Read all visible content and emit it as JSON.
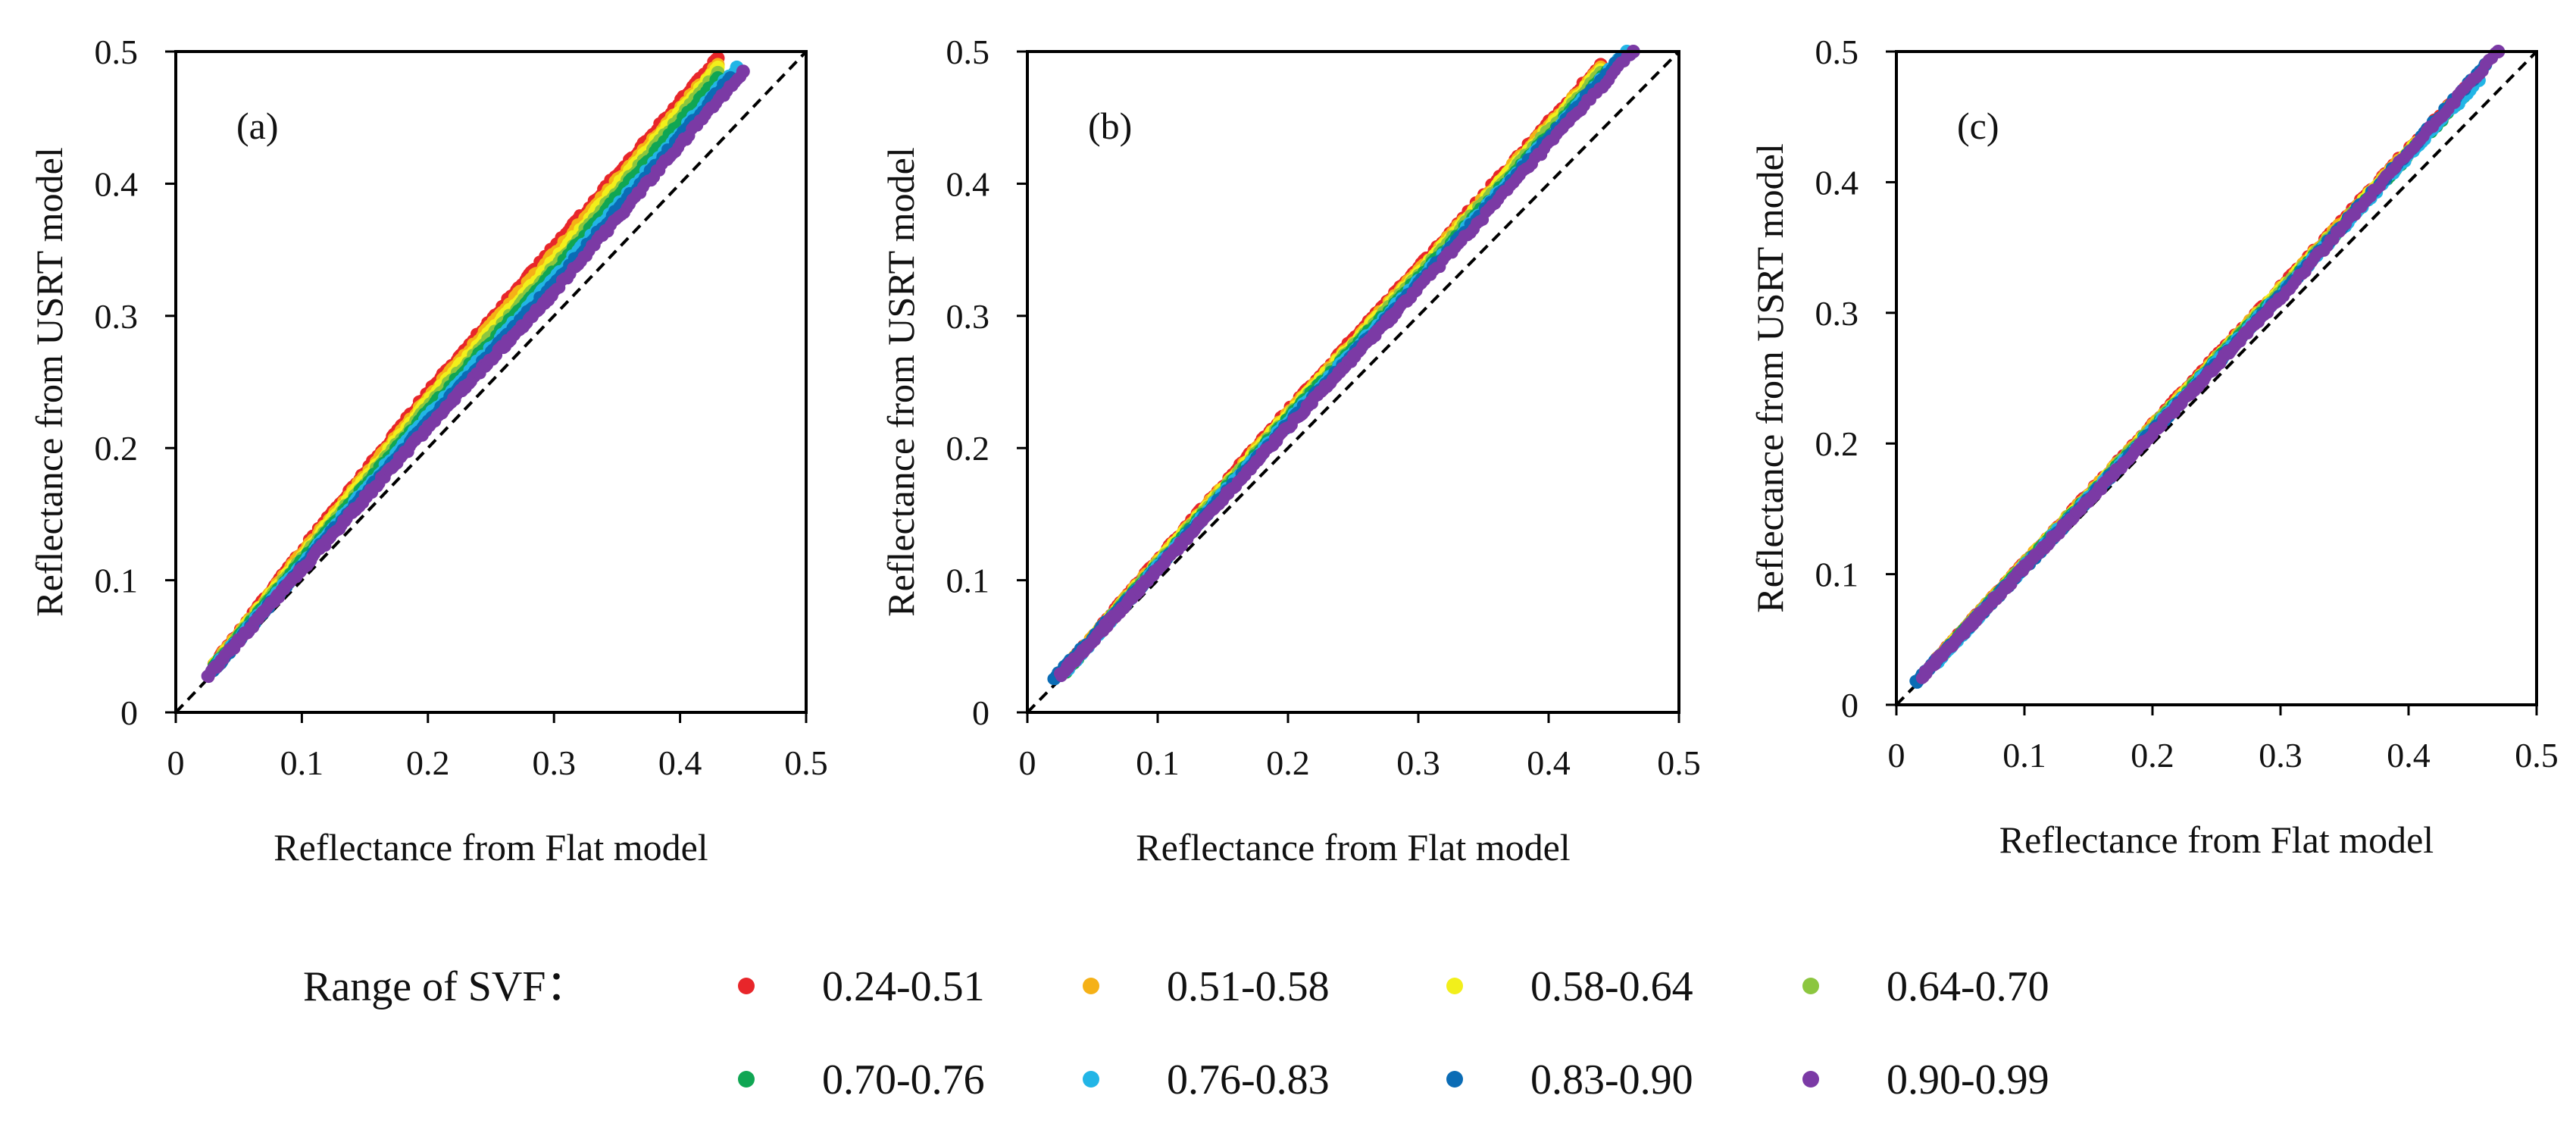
{
  "chart_data": [
    {
      "type": "scatter",
      "panel_label": "(a)",
      "xlabel": "Reflectance from Flat model",
      "ylabel": "Reflectance from USRT model",
      "xlim": [
        0,
        0.5
      ],
      "ylim": [
        0,
        0.5
      ],
      "xticks": [
        "0",
        "0.1",
        "0.2",
        "0.3",
        "0.4",
        "0.5"
      ],
      "yticks": [
        "0",
        "0.1",
        "0.2",
        "0.3",
        "0.4",
        "0.5"
      ],
      "reference_line": "1:1 dashed",
      "series": [
        {
          "name": "0.24-0.51",
          "x": [
            0.03,
            0.1,
            0.2,
            0.3,
            0.43
          ],
          "y": [
            0.036,
            0.122,
            0.242,
            0.352,
            0.495
          ]
        },
        {
          "name": "0.51-0.58",
          "x": [
            0.03,
            0.1,
            0.2,
            0.3,
            0.43
          ],
          "y": [
            0.035,
            0.12,
            0.238,
            0.347,
            0.49
          ]
        },
        {
          "name": "0.58-0.64",
          "x": [
            0.03,
            0.1,
            0.2,
            0.3,
            0.43
          ],
          "y": [
            0.035,
            0.118,
            0.235,
            0.342,
            0.488
          ]
        },
        {
          "name": "0.64-0.70",
          "x": [
            0.03,
            0.1,
            0.2,
            0.3,
            0.43
          ],
          "y": [
            0.034,
            0.116,
            0.231,
            0.337,
            0.484
          ]
        },
        {
          "name": "0.70-0.76",
          "x": [
            0.03,
            0.1,
            0.2,
            0.3,
            0.43
          ],
          "y": [
            0.034,
            0.114,
            0.228,
            0.333,
            0.48
          ]
        },
        {
          "name": "0.76-0.83",
          "x": [
            0.03,
            0.1,
            0.2,
            0.3,
            0.445
          ],
          "y": [
            0.033,
            0.112,
            0.224,
            0.328,
            0.488
          ]
        },
        {
          "name": "0.83-0.90",
          "x": [
            0.03,
            0.1,
            0.2,
            0.3,
            0.44
          ],
          "y": [
            0.032,
            0.11,
            0.22,
            0.324,
            0.48
          ]
        },
        {
          "name": "0.90-0.99",
          "x": [
            0.025,
            0.1,
            0.2,
            0.3,
            0.45
          ],
          "y": [
            0.027,
            0.108,
            0.216,
            0.318,
            0.485
          ]
        }
      ]
    },
    {
      "type": "scatter",
      "panel_label": "(b)",
      "xlabel": "Reflectance from Flat model",
      "ylabel": "Reflectance from USRT model",
      "xlim": [
        0,
        0.5
      ],
      "ylim": [
        0,
        0.5
      ],
      "xticks": [
        "0",
        "0.1",
        "0.2",
        "0.3",
        "0.4",
        "0.5"
      ],
      "yticks": [
        "0",
        "0.1",
        "0.2",
        "0.3",
        "0.4",
        "0.5"
      ],
      "reference_line": "1:1 dashed",
      "series": [
        {
          "name": "0.24-0.51",
          "x": [
            0.03,
            0.1,
            0.2,
            0.3,
            0.44
          ],
          "y": [
            0.034,
            0.115,
            0.228,
            0.336,
            0.49
          ]
        },
        {
          "name": "0.51-0.58",
          "x": [
            0.03,
            0.1,
            0.2,
            0.3,
            0.44
          ],
          "y": [
            0.034,
            0.114,
            0.226,
            0.334,
            0.488
          ]
        },
        {
          "name": "0.58-0.64",
          "x": [
            0.03,
            0.1,
            0.2,
            0.3,
            0.44
          ],
          "y": [
            0.033,
            0.113,
            0.225,
            0.332,
            0.486
          ]
        },
        {
          "name": "0.64-0.70",
          "x": [
            0.03,
            0.1,
            0.2,
            0.3,
            0.44
          ],
          "y": [
            0.033,
            0.112,
            0.223,
            0.33,
            0.484
          ]
        },
        {
          "name": "0.70-0.76",
          "x": [
            0.03,
            0.1,
            0.2,
            0.3,
            0.445
          ],
          "y": [
            0.032,
            0.111,
            0.222,
            0.328,
            0.485
          ]
        },
        {
          "name": "0.76-0.83",
          "x": [
            0.03,
            0.1,
            0.2,
            0.3,
            0.46
          ],
          "y": [
            0.032,
            0.11,
            0.22,
            0.326,
            0.5
          ]
        },
        {
          "name": "0.83-0.90",
          "x": [
            0.02,
            0.1,
            0.2,
            0.3,
            0.455
          ],
          "y": [
            0.025,
            0.109,
            0.218,
            0.324,
            0.495
          ]
        },
        {
          "name": "0.90-0.99",
          "x": [
            0.025,
            0.1,
            0.2,
            0.3,
            0.465
          ],
          "y": [
            0.028,
            0.108,
            0.216,
            0.321,
            0.5
          ]
        }
      ]
    },
    {
      "type": "scatter",
      "panel_label": "(c)",
      "xlabel": "Reflectance from Flat model",
      "ylabel": "Reflectance from USRT model",
      "xlim": [
        0,
        0.5
      ],
      "ylim": [
        0,
        0.5
      ],
      "xticks": [
        "0",
        "0.1",
        "0.2",
        "0.3",
        "0.4",
        "0.5"
      ],
      "yticks": [
        "0",
        "0.1",
        "0.2",
        "0.3",
        "0.4",
        "0.5"
      ],
      "reference_line": "1:1 dashed",
      "series": [
        {
          "name": "0.24-0.51",
          "x": [
            0.03,
            0.1,
            0.2,
            0.3,
            0.45
          ],
          "y": [
            0.033,
            0.108,
            0.214,
            0.319,
            0.478
          ]
        },
        {
          "name": "0.51-0.58",
          "x": [
            0.03,
            0.1,
            0.2,
            0.3,
            0.45
          ],
          "y": [
            0.033,
            0.108,
            0.213,
            0.318,
            0.477
          ]
        },
        {
          "name": "0.58-0.64",
          "x": [
            0.03,
            0.1,
            0.2,
            0.3,
            0.45
          ],
          "y": [
            0.032,
            0.107,
            0.212,
            0.317,
            0.476
          ]
        },
        {
          "name": "0.64-0.70",
          "x": [
            0.03,
            0.1,
            0.2,
            0.3,
            0.45
          ],
          "y": [
            0.032,
            0.107,
            0.212,
            0.316,
            0.475
          ]
        },
        {
          "name": "0.70-0.76",
          "x": [
            0.03,
            0.1,
            0.2,
            0.3,
            0.45
          ],
          "y": [
            0.032,
            0.106,
            0.211,
            0.315,
            0.474
          ]
        },
        {
          "name": "0.76-0.83",
          "x": [
            0.03,
            0.1,
            0.2,
            0.3,
            0.455
          ],
          "y": [
            0.031,
            0.106,
            0.21,
            0.314,
            0.478
          ]
        },
        {
          "name": "0.83-0.90",
          "x": [
            0.015,
            0.1,
            0.2,
            0.3,
            0.46
          ],
          "y": [
            0.017,
            0.105,
            0.209,
            0.313,
            0.49
          ]
        },
        {
          "name": "0.90-0.99",
          "x": [
            0.02,
            0.1,
            0.2,
            0.3,
            0.47
          ],
          "y": [
            0.022,
            0.105,
            0.208,
            0.312,
            0.5
          ]
        }
      ]
    }
  ],
  "legend": {
    "title": "Range of SVF：",
    "placement": "bottom",
    "items": [
      {
        "label": "0.24-0.51",
        "color": "#e8262a"
      },
      {
        "label": "0.51-0.58",
        "color": "#f5b117"
      },
      {
        "label": "0.58-0.64",
        "color": "#f2ef1b"
      },
      {
        "label": "0.64-0.70",
        "color": "#8cc63f"
      },
      {
        "label": "0.70-0.76",
        "color": "#10a653"
      },
      {
        "label": "0.76-0.83",
        "color": "#22b5e6"
      },
      {
        "label": "0.83-0.90",
        "color": "#0b6cb5"
      },
      {
        "label": "0.90-0.99",
        "color": "#7b3aa5"
      }
    ]
  }
}
